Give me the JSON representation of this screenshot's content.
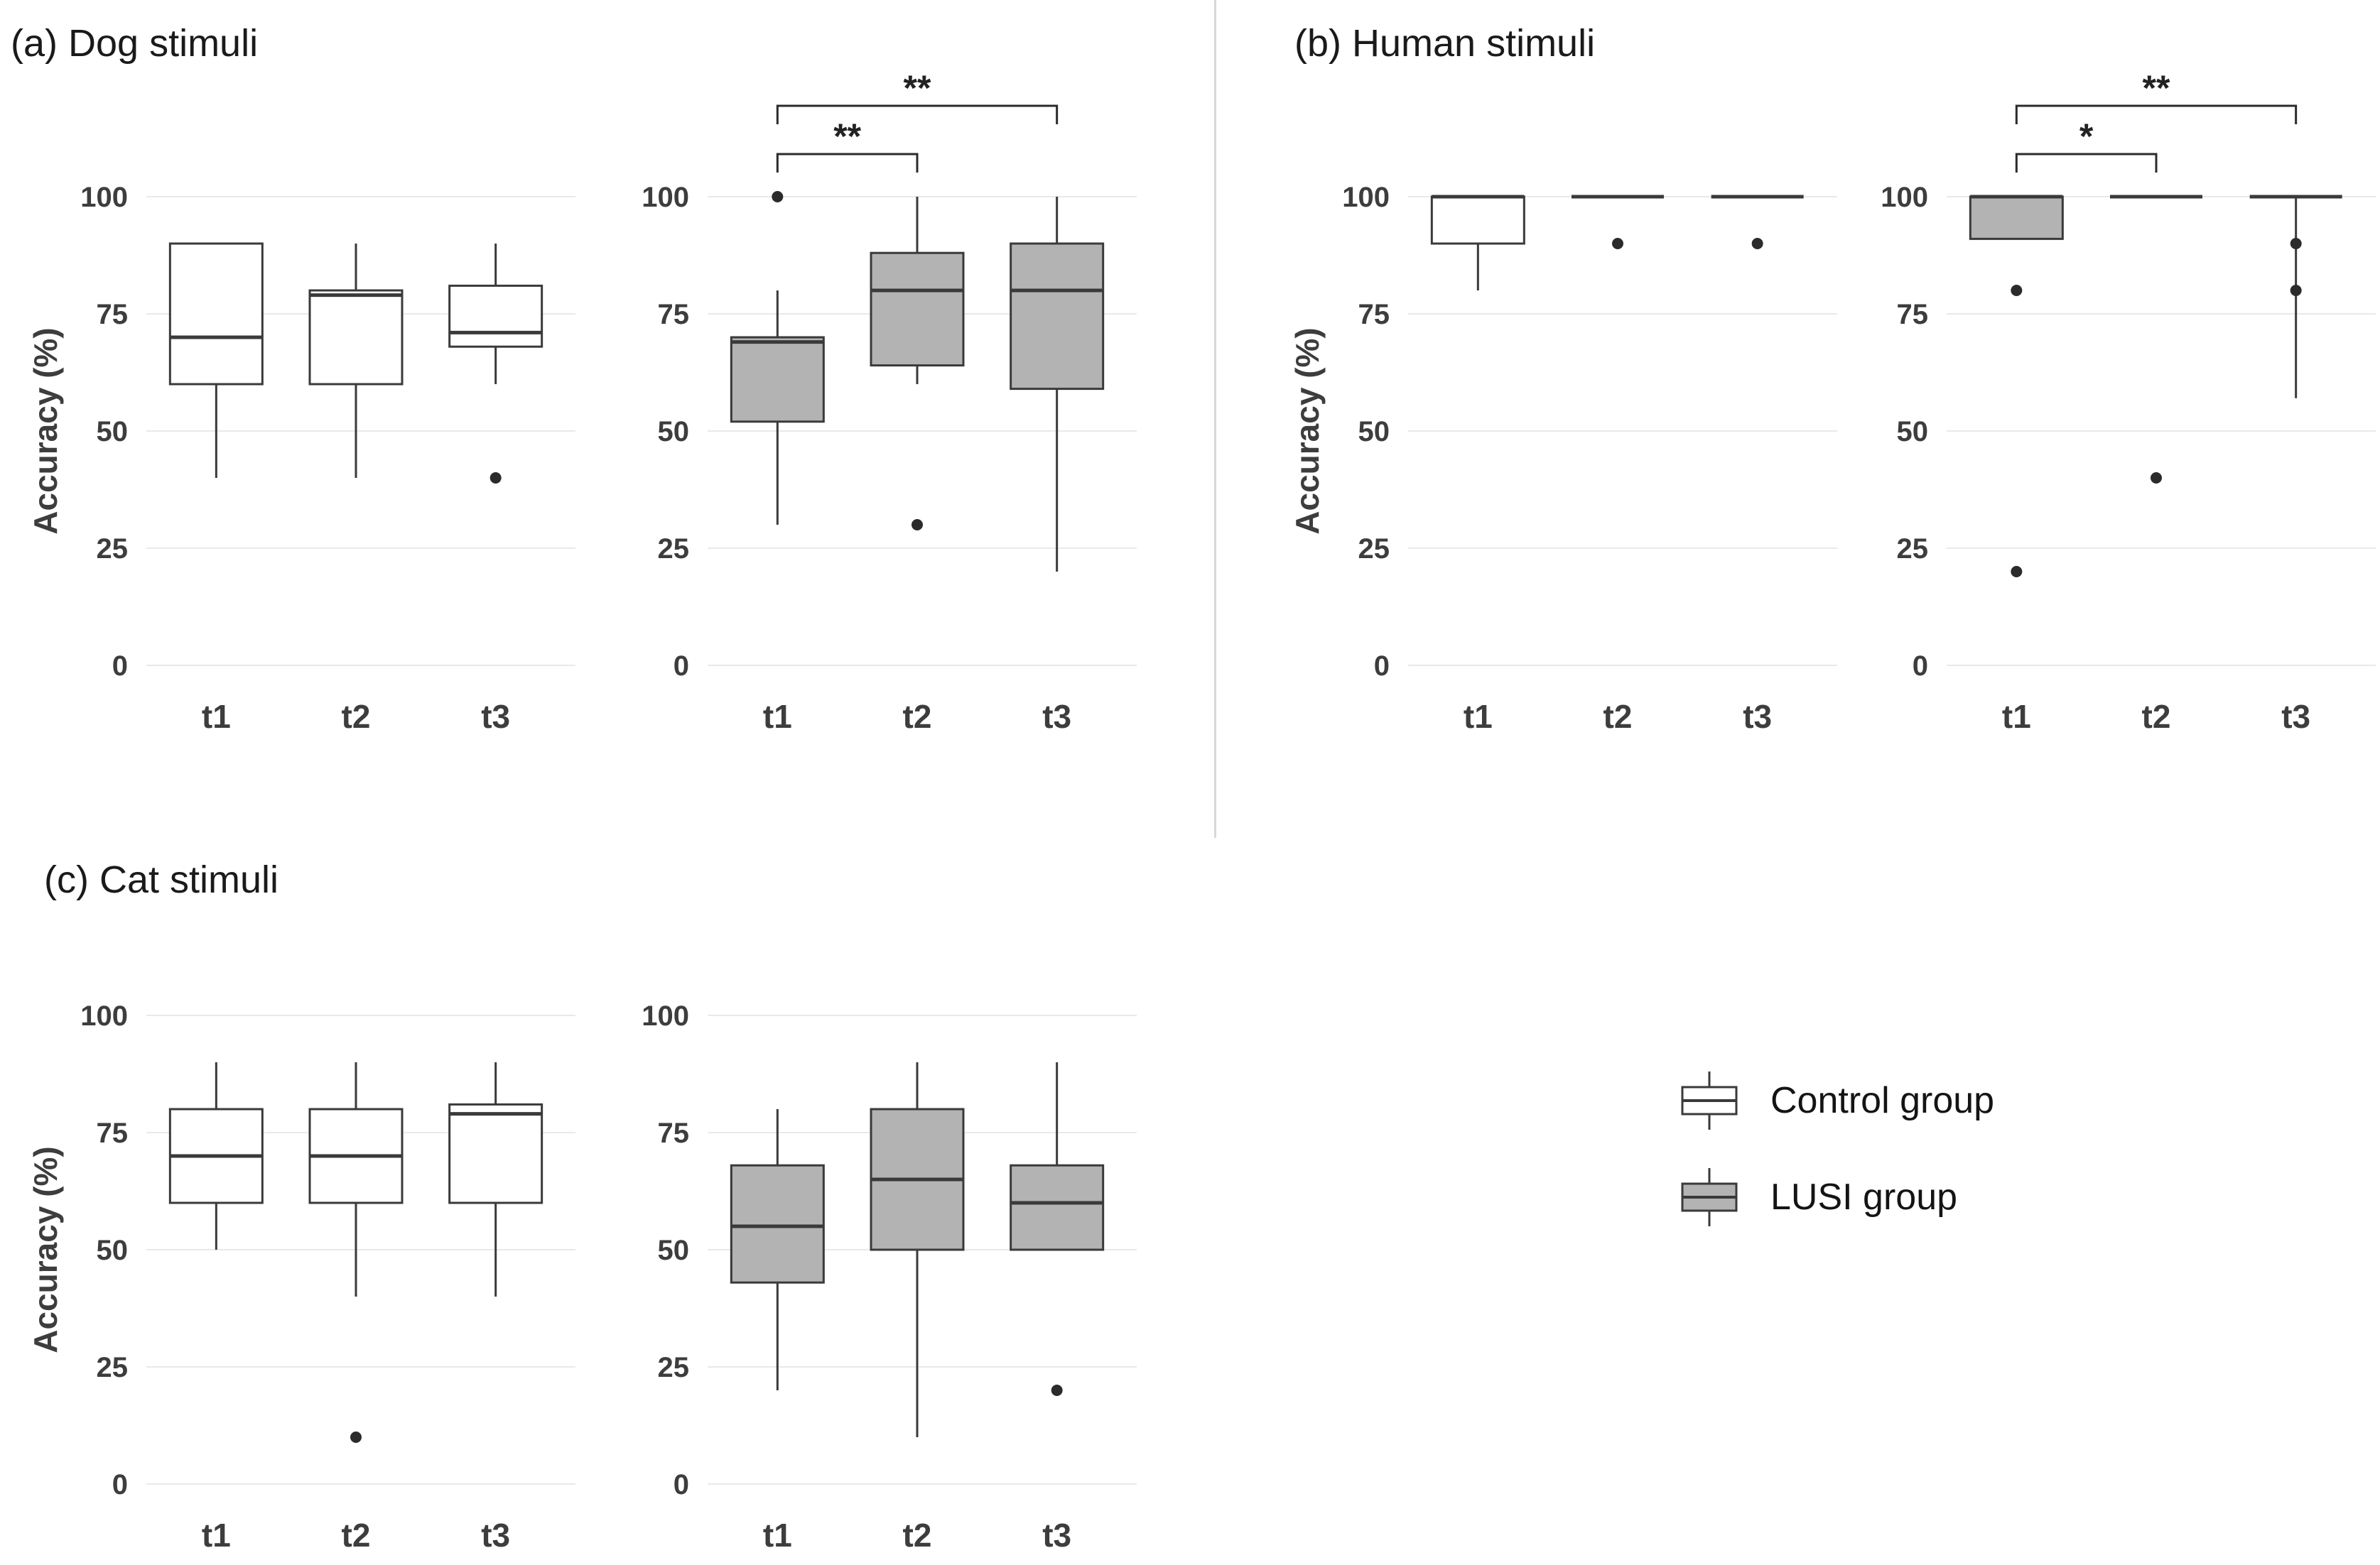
{
  "chart_data": [
    {
      "id": "dog-stimuli",
      "title": "(a) Dog stimuli",
      "type": "boxplot",
      "ylabel": "Accuracy (%)",
      "ylim": [
        0,
        100
      ],
      "yticks": [
        0,
        25,
        50,
        75,
        100
      ],
      "categories": [
        "t1",
        "t2",
        "t3"
      ],
      "grid": "horizontal",
      "subcharts": [
        {
          "group": "Control group",
          "fill": "#ffffff",
          "show_ylabel": true,
          "boxes": [
            {
              "category": "t1",
              "whisker_low": 40,
              "q1": 60,
              "median": 70,
              "q3": 90,
              "whisker_high": 90,
              "outliers": []
            },
            {
              "category": "t2",
              "whisker_low": 40,
              "q1": 60,
              "median": 79,
              "q3": 80,
              "whisker_high": 90,
              "outliers": []
            },
            {
              "category": "t3",
              "whisker_low": 60,
              "q1": 68,
              "median": 71,
              "q3": 81,
              "whisker_high": 90,
              "outliers": [
                40
              ]
            }
          ],
          "brackets": []
        },
        {
          "group": "LUSI group",
          "fill": "#b3b3b3",
          "show_ylabel": false,
          "boxes": [
            {
              "category": "t1",
              "whisker_low": 30,
              "q1": 52,
              "median": 69,
              "q3": 70,
              "whisker_high": 80,
              "outliers": [
                100
              ]
            },
            {
              "category": "t2",
              "whisker_low": 60,
              "q1": 64,
              "median": 80,
              "q3": 88,
              "whisker_high": 100,
              "outliers": [
                30
              ]
            },
            {
              "category": "t3",
              "whisker_low": 20,
              "q1": 59,
              "median": 80,
              "q3": 90,
              "whisker_high": 100,
              "outliers": []
            }
          ],
          "brackets": [
            {
              "from": "t1",
              "to": "t2",
              "label": "**",
              "level": 1
            },
            {
              "from": "t1",
              "to": "t3",
              "label": "**",
              "level": 2
            }
          ]
        }
      ]
    },
    {
      "id": "human-stimuli",
      "title": "(b) Human stimuli",
      "type": "boxplot",
      "ylabel": "Accuracy (%)",
      "ylim": [
        0,
        100
      ],
      "yticks": [
        0,
        25,
        50,
        75,
        100
      ],
      "categories": [
        "t1",
        "t2",
        "t3"
      ],
      "grid": "horizontal",
      "subcharts": [
        {
          "group": "Control group",
          "fill": "#ffffff",
          "show_ylabel": true,
          "boxes": [
            {
              "category": "t1",
              "whisker_low": 80,
              "q1": 90,
              "median": 100,
              "q3": 100,
              "whisker_high": 100,
              "outliers": []
            },
            {
              "category": "t2",
              "whisker_low": 100,
              "q1": 100,
              "median": 100,
              "q3": 100,
              "whisker_high": 100,
              "outliers": [
                90
              ]
            },
            {
              "category": "t3",
              "whisker_low": 100,
              "q1": 100,
              "median": 100,
              "q3": 100,
              "whisker_high": 100,
              "outliers": [
                90
              ]
            }
          ],
          "brackets": []
        },
        {
          "group": "LUSI group",
          "fill": "#b3b3b3",
          "show_ylabel": false,
          "boxes": [
            {
              "category": "t1",
              "whisker_low": 91,
              "q1": 91,
              "median": 100,
              "q3": 100,
              "whisker_high": 100,
              "outliers": [
                80,
                20
              ]
            },
            {
              "category": "t2",
              "whisker_low": 100,
              "q1": 100,
              "median": 100,
              "q3": 100,
              "whisker_high": 100,
              "outliers": [
                40
              ]
            },
            {
              "category": "t3",
              "whisker_low": 57,
              "q1": 100,
              "median": 100,
              "q3": 100,
              "whisker_high": 100,
              "outliers": [
                90,
                80
              ]
            }
          ],
          "brackets": [
            {
              "from": "t1",
              "to": "t2",
              "label": "*",
              "level": 1
            },
            {
              "from": "t1",
              "to": "t3",
              "label": "**",
              "level": 2
            }
          ]
        }
      ]
    },
    {
      "id": "cat-stimuli",
      "title": "(c) Cat stimuli",
      "type": "boxplot",
      "ylabel": "Accuracy (%)",
      "ylim": [
        0,
        100
      ],
      "yticks": [
        0,
        25,
        50,
        75,
        100
      ],
      "categories": [
        "t1",
        "t2",
        "t3"
      ],
      "grid": "horizontal",
      "subcharts": [
        {
          "group": "Control group",
          "fill": "#ffffff",
          "show_ylabel": true,
          "boxes": [
            {
              "category": "t1",
              "whisker_low": 50,
              "q1": 60,
              "median": 70,
              "q3": 80,
              "whisker_high": 90,
              "outliers": []
            },
            {
              "category": "t2",
              "whisker_low": 40,
              "q1": 60,
              "median": 70,
              "q3": 80,
              "whisker_high": 90,
              "outliers": [
                10
              ]
            },
            {
              "category": "t3",
              "whisker_low": 40,
              "q1": 60,
              "median": 79,
              "q3": 81,
              "whisker_high": 90,
              "outliers": []
            }
          ],
          "brackets": []
        },
        {
          "group": "LUSI group",
          "fill": "#b3b3b3",
          "show_ylabel": false,
          "boxes": [
            {
              "category": "t1",
              "whisker_low": 20,
              "q1": 43,
              "median": 55,
              "q3": 68,
              "whisker_high": 80,
              "outliers": []
            },
            {
              "category": "t2",
              "whisker_low": 10,
              "q1": 50,
              "median": 65,
              "q3": 80,
              "whisker_high": 90,
              "outliers": []
            },
            {
              "category": "t3",
              "whisker_low": 50,
              "q1": 50,
              "median": 60,
              "q3": 68,
              "whisker_high": 90,
              "outliers": [
                20
              ]
            }
          ],
          "brackets": []
        }
      ]
    }
  ],
  "legend": {
    "items": [
      {
        "label": "Control group",
        "fill": "#ffffff"
      },
      {
        "label": "LUSI group",
        "fill": "#b3b3b3"
      }
    ]
  },
  "colors": {
    "box_stroke": "#3a3a3a",
    "grid": "#e9e9e9",
    "text": "#3d3d3d",
    "outlier": "#2b2b2b",
    "divider": "#d8d8d8"
  }
}
